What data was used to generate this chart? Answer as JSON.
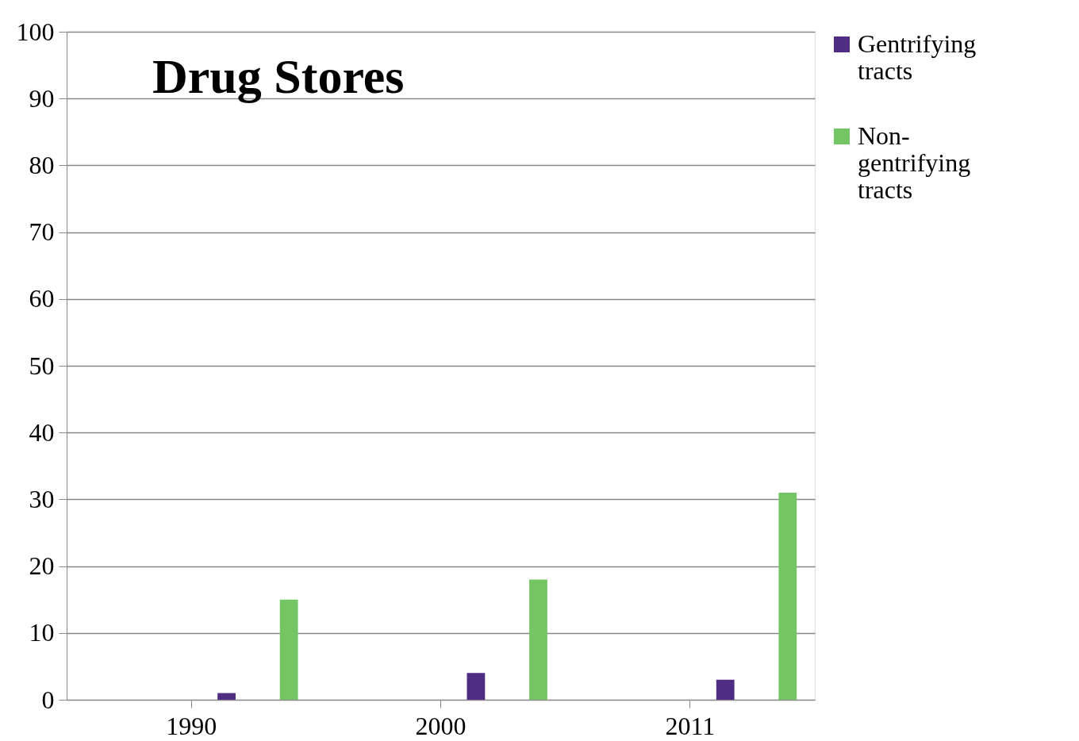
{
  "chart_data": {
    "type": "bar",
    "title": "Drug Stores",
    "categories": [
      "1990",
      "2000",
      "2011"
    ],
    "series": [
      {
        "name": "Gentrifying tracts",
        "color": "#4e2d82",
        "values": [
          1,
          4,
          3
        ]
      },
      {
        "name": "Non-gentrifying tracts",
        "color": "#73c663",
        "values": [
          15,
          18,
          31
        ]
      }
    ],
    "ylim": [
      0,
      100
    ],
    "yticks": [
      0,
      10,
      20,
      30,
      40,
      50,
      60,
      70,
      80,
      90,
      100
    ],
    "grid": "y",
    "legend": "right"
  }
}
